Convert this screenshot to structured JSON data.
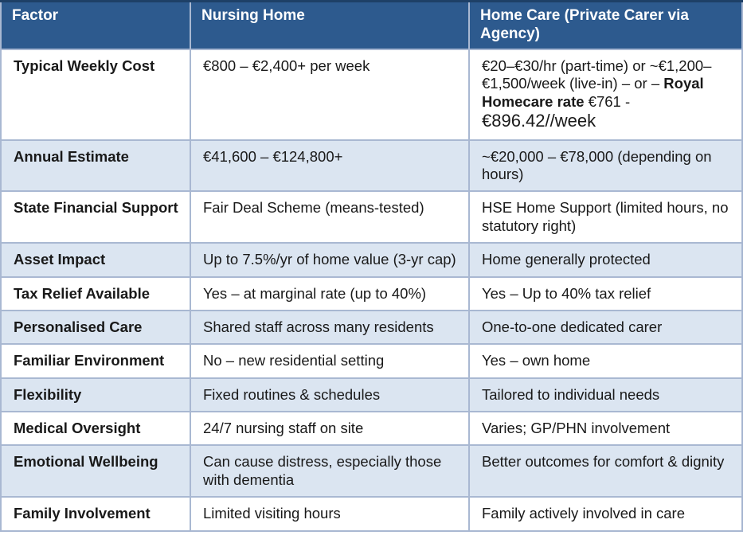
{
  "table": {
    "style": {
      "header_bg": "#2d5a8e",
      "header_text": "#ffffff",
      "band_bg": "#dbe5f1",
      "row_bg": "#ffffff",
      "border": "#a9b8d2",
      "header_top": "#1e4067",
      "text": "#191919"
    },
    "columns": [
      "Factor",
      "Nursing Home",
      "Home Care (Private Carer via Agency)"
    ],
    "rows": [
      {
        "factor": "Typical Weekly Cost",
        "nursing_home": "€800 – €2,400+ per week",
        "home_care_part1": "€20–€30/hr (part-time) or ~€1,200–€1,500/week (live-in) – or – ",
        "home_care_bold": "Royal Homecare rate",
        "home_care_part2": " €761 - ",
        "home_care_large": "€896.42//week"
      },
      {
        "factor": "Annual Estimate",
        "nursing_home": "€41,600 – €124,800+",
        "home_care": "~€20,000 – €78,000 (depending on hours)"
      },
      {
        "factor": "State Financial Support",
        "nursing_home": "Fair Deal Scheme (means-tested)",
        "home_care": "HSE Home Support (limited hours, no statutory right)"
      },
      {
        "factor": "Asset Impact",
        "nursing_home": "Up to 7.5%/yr of home value (3-yr cap)",
        "home_care": "Home generally protected"
      },
      {
        "factor": "Tax Relief Available",
        "nursing_home": "Yes – at marginal rate (up to 40%)",
        "home_care": "Yes – Up to 40% tax relief"
      },
      {
        "factor": "Personalised Care",
        "nursing_home": "Shared staff across many residents",
        "home_care": "One-to-one dedicated carer"
      },
      {
        "factor": "Familiar Environment",
        "nursing_home": "No – new residential setting",
        "home_care": "Yes – own home"
      },
      {
        "factor": "Flexibility",
        "nursing_home": "Fixed routines & schedules",
        "home_care": "Tailored to individual needs"
      },
      {
        "factor": "Medical Oversight",
        "nursing_home": "24/7 nursing staff on site",
        "home_care": "Varies; GP/PHN involvement"
      },
      {
        "factor": "Emotional Wellbeing",
        "nursing_home": "Can cause distress, especially those with dementia",
        "home_care": "Better outcomes for comfort & dignity"
      },
      {
        "factor": "Family Involvement",
        "nursing_home": "Limited visiting hours",
        "home_care": "Family actively involved in care"
      }
    ]
  }
}
